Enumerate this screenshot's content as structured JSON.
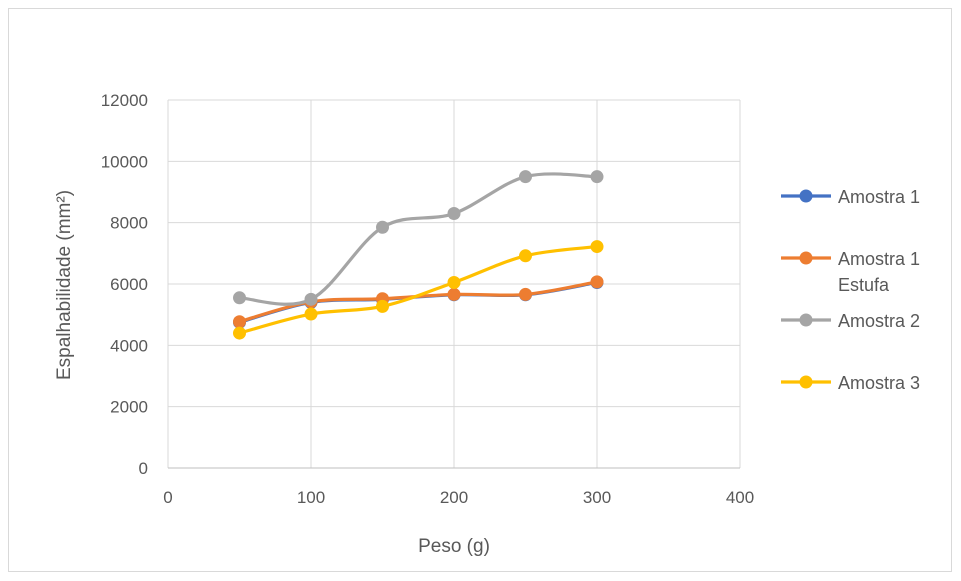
{
  "chart_data": {
    "type": "line",
    "xlabel": "Peso (g)",
    "ylabel": "Espalhabilidade (mm²)",
    "xlim": [
      0,
      400
    ],
    "ylim": [
      0,
      12000
    ],
    "x_ticks": [
      0,
      100,
      200,
      300,
      400
    ],
    "y_ticks": [
      0,
      2000,
      4000,
      6000,
      8000,
      10000,
      12000
    ],
    "grid": true,
    "smooth": true,
    "legend_position": "right",
    "series": [
      {
        "name": "Amostra 1",
        "legend_lines": [
          "Amostra 1"
        ],
        "color": "#4472C4",
        "x": [
          50,
          100,
          150,
          200,
          250,
          300
        ],
        "y": [
          4750,
          5400,
          5500,
          5650,
          5650,
          6050
        ]
      },
      {
        "name": "Amostra 1 Estufa",
        "legend_lines": [
          "Amostra 1",
          "Estufa"
        ],
        "color": "#ED7D31",
        "x": [
          50,
          100,
          150,
          200,
          250,
          300
        ],
        "y": [
          4770,
          5420,
          5520,
          5660,
          5660,
          6070
        ]
      },
      {
        "name": "Amostra 2",
        "legend_lines": [
          "Amostra 2"
        ],
        "color": "#A5A5A5",
        "x": [
          50,
          100,
          150,
          200,
          250,
          300
        ],
        "y": [
          5550,
          5500,
          7850,
          8300,
          9500,
          9500
        ]
      },
      {
        "name": "Amostra 3",
        "legend_lines": [
          "Amostra 3"
        ],
        "color": "#FFC000",
        "x": [
          50,
          100,
          150,
          200,
          250,
          300
        ],
        "y": [
          4400,
          5020,
          5270,
          6050,
          6920,
          7220
        ]
      }
    ]
  }
}
